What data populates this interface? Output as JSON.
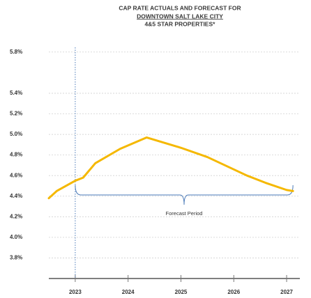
{
  "chart_data": {
    "type": "line",
    "title": [
      "CAP RATE ACTUALS AND FORECAST FOR",
      "DOWNTOWN SALT LAKE CITY",
      "4&5 STAR PROPERTIES*"
    ],
    "series": [
      {
        "name": "Cap Rate",
        "color": "#f5b800",
        "x": [
          2022.5,
          2022.65,
          2023,
          2023.15,
          2023.38,
          2023.85,
          2024.35,
          2025,
          2025.5,
          2026,
          2026.25,
          2026.6,
          2027,
          2027.12
        ],
        "values": [
          4.38,
          4.45,
          4.55,
          4.58,
          4.72,
          4.86,
          4.97,
          4.87,
          4.78,
          4.66,
          4.6,
          4.53,
          4.46,
          4.45
        ]
      }
    ],
    "xlim": [
      2022.5,
      2027.25
    ],
    "xticks": [
      2023,
      2024,
      2025,
      2026,
      2027
    ],
    "ylim": [
      3.6,
      5.9
    ],
    "yticks": [
      {
        "value": 5.8,
        "label": "5.8%"
      },
      {
        "value": 5.4,
        "label": "5.4%"
      },
      {
        "value": 5.2,
        "label": "5.2%"
      },
      {
        "value": 5.0,
        "label": "5.0%"
      },
      {
        "value": 4.8,
        "label": "4.8%"
      },
      {
        "value": 4.6,
        "label": "4.6%"
      },
      {
        "value": 4.4,
        "label": "4.4%"
      },
      {
        "value": 4.2,
        "label": "4.2%"
      },
      {
        "value": 4.0,
        "label": "4.0%"
      },
      {
        "value": 3.8,
        "label": "3.8%"
      }
    ],
    "grid": true,
    "forecast_period": {
      "label": "Forecast Period",
      "start": 2023,
      "end": 2027.12
    }
  }
}
